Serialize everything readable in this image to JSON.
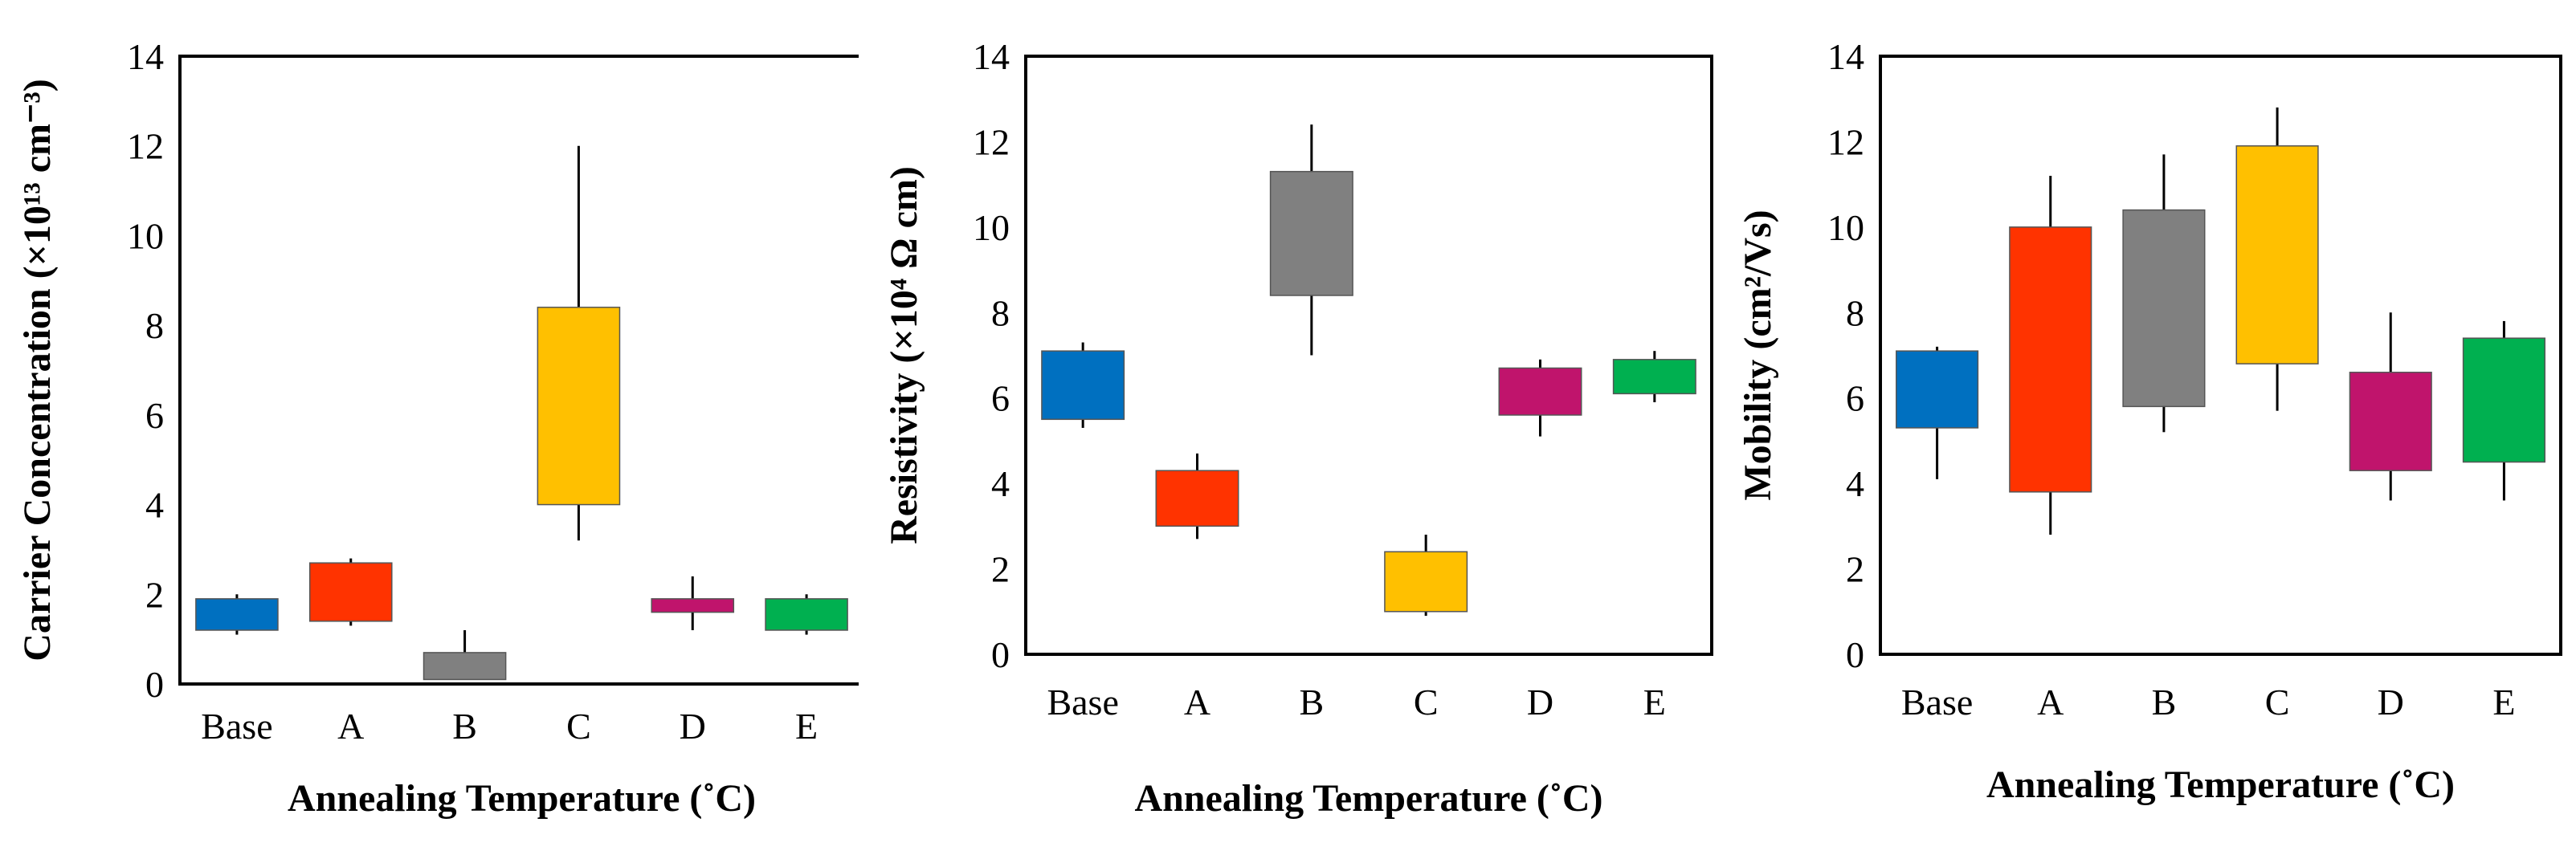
{
  "chart_data": [
    {
      "type": "box",
      "title": "",
      "xlabel": "Annealing Temperature (˚C)",
      "ylabel": "Carrier   Concentration (×10¹³ cm⁻³)",
      "ylim": [
        0,
        14
      ],
      "yticks": [
        0,
        2,
        4,
        6,
        8,
        10,
        12,
        14
      ],
      "categories": [
        "Base",
        "A",
        "B",
        "C",
        "D",
        "E"
      ],
      "colors": [
        "#0070C0",
        "#FF3300",
        "#808080",
        "#FFC000",
        "#C0146C",
        "#00B050"
      ],
      "boxes": [
        {
          "whisker_low": 1.1,
          "box_low": 1.2,
          "box_high": 1.9,
          "whisker_high": 2.0
        },
        {
          "whisker_low": 1.3,
          "box_low": 1.4,
          "box_high": 2.7,
          "whisker_high": 2.8
        },
        {
          "whisker_low": 0.1,
          "box_low": 0.1,
          "box_high": 0.7,
          "whisker_high": 1.2
        },
        {
          "whisker_low": 3.2,
          "box_low": 4.0,
          "box_high": 8.4,
          "whisker_high": 12.0
        },
        {
          "whisker_low": 1.2,
          "box_low": 1.6,
          "box_high": 1.9,
          "whisker_high": 2.4
        },
        {
          "whisker_low": 1.1,
          "box_low": 1.2,
          "box_high": 1.9,
          "whisker_high": 2.0
        }
      ]
    },
    {
      "type": "box",
      "title": "",
      "xlabel": "Annealing Temperature (˚C)",
      "ylabel": "Resistivity (×10⁴ Ω cm)",
      "ylim": [
        0,
        14
      ],
      "yticks": [
        0,
        2,
        4,
        6,
        8,
        10,
        12,
        14
      ],
      "categories": [
        "Base",
        "A",
        "B",
        "C",
        "D",
        "E"
      ],
      "colors": [
        "#0070C0",
        "#FF3300",
        "#808080",
        "#FFC000",
        "#C0146C",
        "#00B050"
      ],
      "boxes": [
        {
          "whisker_low": 5.3,
          "box_low": 5.5,
          "box_high": 7.1,
          "whisker_high": 7.3
        },
        {
          "whisker_low": 2.7,
          "box_low": 3.0,
          "box_high": 4.3,
          "whisker_high": 4.7
        },
        {
          "whisker_low": 7.0,
          "box_low": 8.4,
          "box_high": 11.3,
          "whisker_high": 12.4
        },
        {
          "whisker_low": 0.9,
          "box_low": 1.0,
          "box_high": 2.4,
          "whisker_high": 2.8
        },
        {
          "whisker_low": 5.1,
          "box_low": 5.6,
          "box_high": 6.7,
          "whisker_high": 6.9
        },
        {
          "whisker_low": 5.9,
          "box_low": 6.1,
          "box_high": 6.9,
          "whisker_high": 7.1
        }
      ]
    },
    {
      "type": "box",
      "title": "",
      "xlabel": "Annealing Temperature (˚C)",
      "ylabel": "Mobility (cm²/Vs)",
      "ylim": [
        0,
        14
      ],
      "yticks": [
        0,
        2,
        4,
        6,
        8,
        10,
        12,
        14
      ],
      "categories": [
        "Base",
        "A",
        "B",
        "C",
        "D",
        "E"
      ],
      "colors": [
        "#0070C0",
        "#FF3300",
        "#808080",
        "#FFC000",
        "#C0146C",
        "#00B050"
      ],
      "boxes": [
        {
          "whisker_low": 4.1,
          "box_low": 5.3,
          "box_high": 7.1,
          "whisker_high": 7.2
        },
        {
          "whisker_low": 2.8,
          "box_low": 3.8,
          "box_high": 10.0,
          "whisker_high": 11.2
        },
        {
          "whisker_low": 5.2,
          "box_low": 5.8,
          "box_high": 10.4,
          "whisker_high": 11.7
        },
        {
          "whisker_low": 5.7,
          "box_low": 6.8,
          "box_high": 11.9,
          "whisker_high": 12.8
        },
        {
          "whisker_low": 3.6,
          "box_low": 4.3,
          "box_high": 6.6,
          "whisker_high": 8.0
        },
        {
          "whisker_low": 3.6,
          "box_low": 4.5,
          "box_high": 7.4,
          "whisker_high": 7.8
        }
      ]
    }
  ]
}
